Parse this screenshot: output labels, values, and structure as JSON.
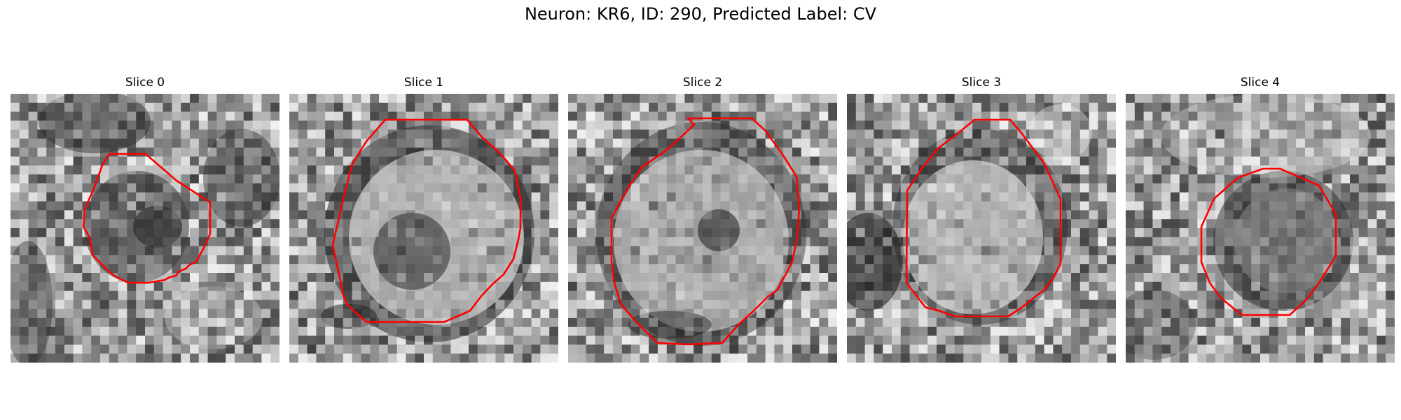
{
  "figure": {
    "title": "Neuron: KR6, ID: 290, Predicted Label: CV"
  },
  "panels": [
    {
      "title": "Slice 0",
      "outline_color": "#ff0000"
    },
    {
      "title": "Slice 1",
      "outline_color": "#ff0000"
    },
    {
      "title": "Slice 2",
      "outline_color": "#ff0000"
    },
    {
      "title": "Slice 3",
      "outline_color": "#ff0000"
    },
    {
      "title": "Slice 4",
      "outline_color": "#ff0000"
    }
  ],
  "colors": {
    "outline": "#ff0000",
    "background": "#ffffff",
    "text": "#000000"
  }
}
